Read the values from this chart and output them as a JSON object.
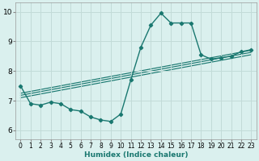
{
  "xlabel": "Humidex (Indice chaleur)",
  "xlim": [
    -0.5,
    23.5
  ],
  "ylim": [
    5.7,
    10.3
  ],
  "xticks": [
    0,
    1,
    2,
    3,
    4,
    5,
    6,
    7,
    8,
    9,
    10,
    11,
    12,
    13,
    14,
    15,
    16,
    17,
    18,
    19,
    20,
    21,
    22,
    23
  ],
  "yticks": [
    6,
    7,
    8,
    9,
    10
  ],
  "background_color": "#daf0ee",
  "grid_color": "#c2dbd8",
  "line_color": "#1a7870",
  "main_curve": {
    "x": [
      0,
      1,
      2,
      3,
      4,
      5,
      6,
      7,
      8,
      9,
      10,
      11,
      12,
      13,
      14,
      15,
      16,
      17,
      18,
      19,
      20,
      21,
      22,
      23
    ],
    "y": [
      7.5,
      6.9,
      6.85,
      6.95,
      6.9,
      6.7,
      6.65,
      6.45,
      6.35,
      6.3,
      6.55,
      7.7,
      8.8,
      9.55,
      9.95,
      9.62,
      9.62,
      9.62,
      8.55,
      8.4,
      8.45,
      8.5,
      8.65,
      8.72
    ]
  },
  "linear_lines": [
    {
      "x": [
        0,
        23
      ],
      "y": [
        7.1,
        8.55
      ]
    },
    {
      "x": [
        0,
        23
      ],
      "y": [
        7.18,
        8.63
      ]
    },
    {
      "x": [
        0,
        23
      ],
      "y": [
        7.25,
        8.7
      ]
    }
  ],
  "markersize": 2.2,
  "linewidth": 1.0
}
